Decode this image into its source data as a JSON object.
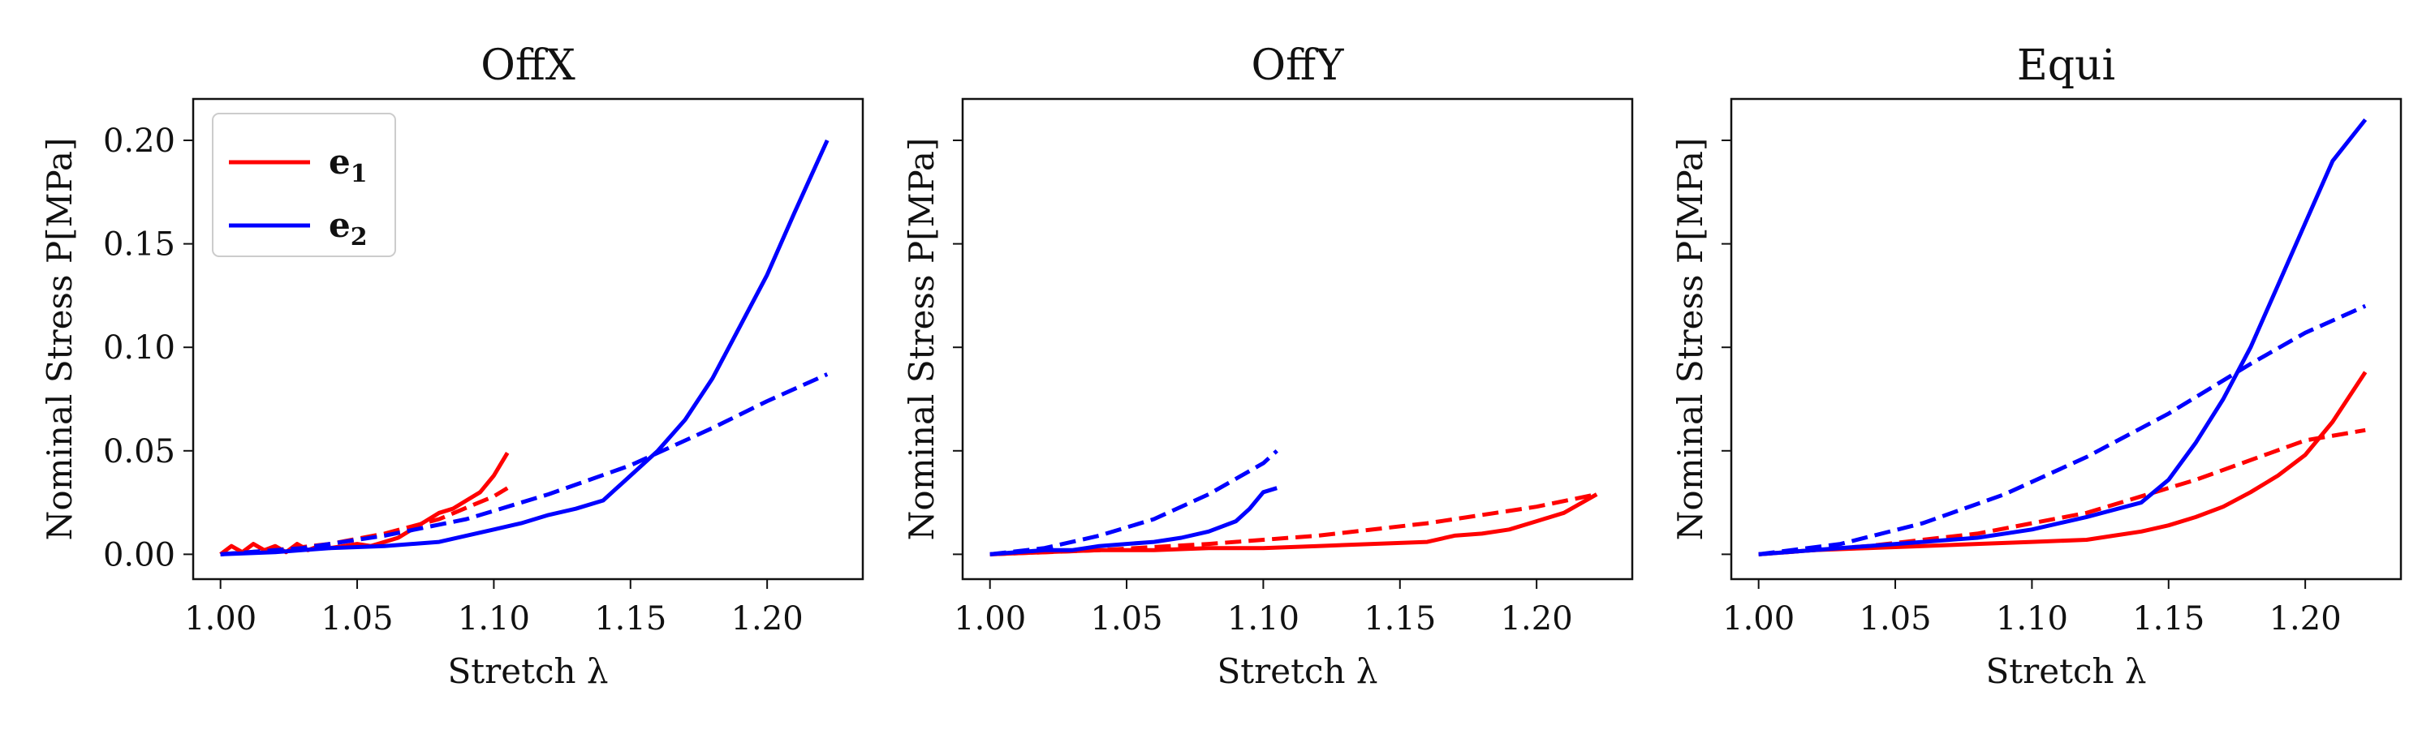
{
  "chart_data": [
    {
      "type": "line",
      "title": "OffX",
      "xlabel": "Stretch λ",
      "ylabel": "Nominal Stress P[MPa]",
      "xlim": [
        0.99,
        1.235
      ],
      "ylim": [
        -0.012,
        0.22
      ],
      "xticks": [
        "1.00",
        "1.05",
        "1.10",
        "1.15",
        "1.20"
      ],
      "yticks": [
        "0.00",
        "0.05",
        "0.10",
        "0.15",
        "0.20"
      ],
      "grid": false,
      "legend": {
        "placement": "top-left",
        "entries": [
          {
            "label": "e",
            "sub": "1",
            "color": "#ff0000"
          },
          {
            "label": "e",
            "sub": "2",
            "color": "#0000ff"
          }
        ]
      },
      "series": [
        {
          "name": "e1",
          "style": "solid",
          "color": "#ff0000",
          "x": [
            1.0,
            1.004,
            1.008,
            1.012,
            1.016,
            1.02,
            1.024,
            1.028,
            1.032,
            1.036,
            1.04,
            1.045,
            1.05,
            1.055,
            1.06,
            1.065,
            1.07,
            1.075,
            1.08,
            1.085,
            1.09,
            1.095,
            1.1,
            1.105
          ],
          "y": [
            0.0,
            0.004,
            0.001,
            0.005,
            0.002,
            0.004,
            0.001,
            0.005,
            0.002,
            0.004,
            0.003,
            0.004,
            0.005,
            0.004,
            0.006,
            0.008,
            0.012,
            0.016,
            0.02,
            0.022,
            0.026,
            0.03,
            0.038,
            0.049
          ]
        },
        {
          "style": "dashed",
          "color": "#ff0000",
          "x": [
            1.0,
            1.02,
            1.04,
            1.06,
            1.08,
            1.1,
            1.105
          ],
          "y": [
            0.0,
            0.002,
            0.005,
            0.01,
            0.017,
            0.028,
            0.032
          ]
        },
        {
          "name": "e2",
          "style": "solid",
          "color": "#0000ff",
          "x": [
            1.0,
            1.02,
            1.04,
            1.06,
            1.08,
            1.09,
            1.1,
            1.11,
            1.12,
            1.13,
            1.14,
            1.15,
            1.16,
            1.17,
            1.18,
            1.19,
            1.2,
            1.21,
            1.222
          ],
          "y": [
            0.0,
            0.001,
            0.003,
            0.004,
            0.006,
            0.009,
            0.012,
            0.015,
            0.019,
            0.022,
            0.026,
            0.038,
            0.05,
            0.065,
            0.085,
            0.11,
            0.135,
            0.165,
            0.2
          ]
        },
        {
          "style": "dashed",
          "color": "#0000ff",
          "x": [
            1.0,
            1.03,
            1.06,
            1.09,
            1.12,
            1.15,
            1.18,
            1.2,
            1.222
          ],
          "y": [
            0.0,
            0.003,
            0.009,
            0.017,
            0.029,
            0.043,
            0.061,
            0.074,
            0.087
          ]
        }
      ]
    },
    {
      "type": "line",
      "title": "OffY",
      "xlabel": "Stretch λ",
      "ylabel": "Nominal Stress P[MPa]",
      "xlim": [
        0.99,
        1.235
      ],
      "ylim": [
        -0.012,
        0.22
      ],
      "xticks": [
        "1.00",
        "1.05",
        "1.10",
        "1.15",
        "1.20"
      ],
      "yticks": [],
      "grid": false,
      "series": [
        {
          "style": "solid",
          "color": "#ff0000",
          "x": [
            1.0,
            1.02,
            1.04,
            1.06,
            1.08,
            1.1,
            1.12,
            1.14,
            1.16,
            1.17,
            1.18,
            1.19,
            1.2,
            1.21,
            1.222
          ],
          "y": [
            0.0,
            0.001,
            0.002,
            0.002,
            0.003,
            0.003,
            0.004,
            0.005,
            0.006,
            0.009,
            0.01,
            0.012,
            0.016,
            0.02,
            0.029
          ]
        },
        {
          "style": "dashed",
          "color": "#ff0000",
          "x": [
            1.0,
            1.04,
            1.08,
            1.12,
            1.16,
            1.2,
            1.222
          ],
          "y": [
            0.0,
            0.002,
            0.005,
            0.009,
            0.015,
            0.023,
            0.029
          ]
        },
        {
          "style": "solid",
          "color": "#0000ff",
          "x": [
            1.0,
            1.01,
            1.02,
            1.03,
            1.04,
            1.05,
            1.06,
            1.07,
            1.08,
            1.09,
            1.095,
            1.1,
            1.105
          ],
          "y": [
            0.0,
            0.001,
            0.002,
            0.002,
            0.004,
            0.005,
            0.006,
            0.008,
            0.011,
            0.016,
            0.022,
            0.03,
            0.032
          ]
        },
        {
          "style": "dashed",
          "color": "#0000ff",
          "x": [
            1.0,
            1.02,
            1.04,
            1.06,
            1.08,
            1.1,
            1.105
          ],
          "y": [
            0.0,
            0.003,
            0.009,
            0.017,
            0.029,
            0.044,
            0.05
          ]
        }
      ]
    },
    {
      "type": "line",
      "title": "Equi",
      "xlabel": "Stretch λ",
      "ylabel": "Nominal Stress P[MPa]",
      "xlim": [
        0.99,
        1.235
      ],
      "ylim": [
        -0.012,
        0.22
      ],
      "xticks": [
        "1.00",
        "1.05",
        "1.10",
        "1.15",
        "1.20"
      ],
      "yticks": [],
      "grid": false,
      "series": [
        {
          "style": "solid",
          "color": "#ff0000",
          "x": [
            1.0,
            1.02,
            1.04,
            1.06,
            1.08,
            1.1,
            1.12,
            1.13,
            1.14,
            1.15,
            1.16,
            1.17,
            1.18,
            1.19,
            1.2,
            1.21,
            1.222
          ],
          "y": [
            0.0,
            0.002,
            0.003,
            0.004,
            0.005,
            0.006,
            0.007,
            0.009,
            0.011,
            0.014,
            0.018,
            0.023,
            0.03,
            0.038,
            0.048,
            0.064,
            0.088
          ]
        },
        {
          "style": "dashed",
          "color": "#ff0000",
          "x": [
            1.0,
            1.04,
            1.08,
            1.12,
            1.16,
            1.2,
            1.222
          ],
          "y": [
            0.0,
            0.004,
            0.01,
            0.02,
            0.036,
            0.055,
            0.06
          ]
        },
        {
          "style": "solid",
          "color": "#0000ff",
          "x": [
            1.0,
            1.02,
            1.04,
            1.06,
            1.08,
            1.1,
            1.12,
            1.14,
            1.15,
            1.16,
            1.17,
            1.18,
            1.19,
            1.2,
            1.21,
            1.222
          ],
          "y": [
            0.0,
            0.002,
            0.004,
            0.006,
            0.008,
            0.012,
            0.018,
            0.025,
            0.036,
            0.054,
            0.075,
            0.1,
            0.13,
            0.16,
            0.19,
            0.21
          ]
        },
        {
          "style": "dashed",
          "color": "#0000ff",
          "x": [
            1.0,
            1.03,
            1.06,
            1.09,
            1.12,
            1.15,
            1.18,
            1.2,
            1.222
          ],
          "y": [
            0.0,
            0.005,
            0.015,
            0.029,
            0.047,
            0.068,
            0.092,
            0.107,
            0.12
          ]
        }
      ]
    }
  ]
}
